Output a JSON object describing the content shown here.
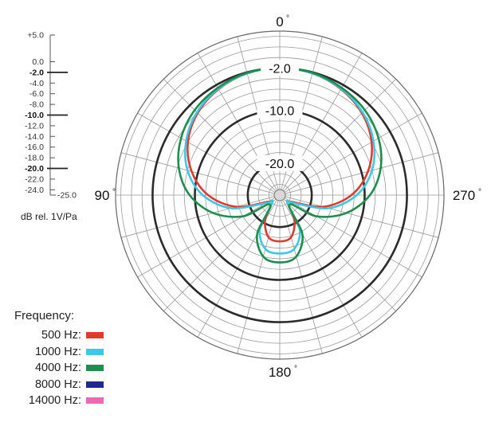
{
  "chart_data": {
    "type": "polar",
    "angle_labels": [
      {
        "angle": 0,
        "text": "0"
      },
      {
        "angle": 90,
        "text": "90"
      },
      {
        "angle": 180,
        "text": "180"
      },
      {
        "angle": 270,
        "text": "270"
      }
    ],
    "ring_labels": [
      "-2.0",
      "-10.0",
      "-20.0"
    ],
    "radial_scale": {
      "min": -25.0,
      "max": 5.0,
      "ticks": [
        {
          "value": 5.0,
          "label": "+5.0",
          "bold": false
        },
        {
          "value": 0.0,
          "label": "0.0",
          "bold": false
        },
        {
          "value": -2.0,
          "label": "-2.0",
          "bold": true
        },
        {
          "value": -4.0,
          "label": "-4.0",
          "bold": false
        },
        {
          "value": -6.0,
          "label": "-6.0",
          "bold": false
        },
        {
          "value": -8.0,
          "label": "-8.0",
          "bold": false
        },
        {
          "value": -10.0,
          "label": "-10.0",
          "bold": true
        },
        {
          "value": -12.0,
          "label": "-12.0",
          "bold": false
        },
        {
          "value": -14.0,
          "label": "-14.0",
          "bold": false
        },
        {
          "value": -16.0,
          "label": "-16.0",
          "bold": false
        },
        {
          "value": -18.0,
          "label": "-18.0",
          "bold": false
        },
        {
          "value": -20.0,
          "label": "-20.0",
          "bold": true
        },
        {
          "value": -22.0,
          "label": "-22.0",
          "bold": false
        },
        {
          "value": -24.0,
          "label": "-24.0",
          "bold": false
        },
        {
          "value": -25.0,
          "label": "-25.0",
          "bold": false
        }
      ],
      "unit_label": "dB rel. 1V/Pa"
    },
    "grid_rings": [
      5.0,
      4.0,
      2.0,
      0.0,
      -2.0,
      -4.0,
      -6.0,
      -8.0,
      -10.0,
      -12.0,
      -14.0,
      -16.0,
      -18.0,
      -20.0,
      -22.0,
      -24.0
    ],
    "bold_rings": [
      -2.0,
      -10.0,
      -20.0
    ],
    "spoke_step_deg": 15,
    "series": [
      {
        "name": "500 Hz",
        "color": "#e03a2e",
        "angles": [
          0,
          15,
          30,
          45,
          60,
          75,
          90,
          105,
          120,
          135,
          150,
          165,
          180
        ],
        "values": [
          -2.0,
          -2.2,
          -2.9,
          -4.1,
          -6.0,
          -8.8,
          -12.5,
          -17.5,
          -23.5,
          -24.0,
          -20.5,
          -17.8,
          -17.3
        ]
      },
      {
        "name": "1000 Hz",
        "color": "#3cc8e6",
        "angles": [
          0,
          15,
          30,
          45,
          60,
          75,
          90,
          105,
          120,
          135,
          150,
          165,
          180
        ],
        "values": [
          -2.0,
          -2.2,
          -2.8,
          -3.9,
          -5.6,
          -8.0,
          -11.5,
          -16.5,
          -23.0,
          -24.0,
          -18.5,
          -15.5,
          -15.0
        ]
      },
      {
        "name": "4000 Hz",
        "color": "#1e8e4e",
        "angles": [
          0,
          15,
          30,
          45,
          60,
          75,
          90,
          105,
          120,
          135,
          150,
          165,
          180
        ],
        "values": [
          -2.0,
          -2.1,
          -2.6,
          -3.3,
          -4.5,
          -6.3,
          -9.0,
          -13.0,
          -18.0,
          -23.5,
          -17.5,
          -14.0,
          -13.3
        ]
      }
    ],
    "legend": {
      "title": "Frequency:",
      "items": [
        {
          "label": "500 Hz:",
          "color": "#e03a2e"
        },
        {
          "label": "1000 Hz:",
          "color": "#3cc8e6"
        },
        {
          "label": "4000 Hz:",
          "color": "#1e8e4e"
        },
        {
          "label": "8000 Hz:",
          "color": "#1c2a8c"
        },
        {
          "label": "14000 Hz:",
          "color": "#ea6bb4"
        }
      ]
    },
    "grid": true
  }
}
